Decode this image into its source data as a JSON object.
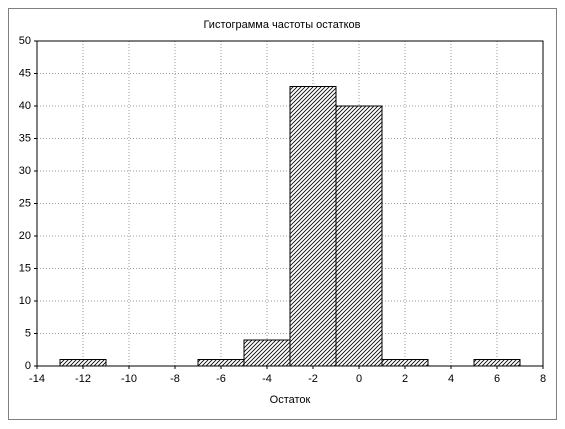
{
  "chart_data": {
    "type": "histogram",
    "title": "Гистограмма частоты остатков",
    "x_label": "Остаток",
    "bins": [
      -13,
      -11,
      -9,
      -7,
      -5,
      -3,
      -1,
      1,
      3,
      5,
      7
    ],
    "values": [
      1,
      0,
      0,
      1,
      4,
      43,
      40,
      1,
      0,
      1
    ],
    "xlim": [
      -14,
      8
    ],
    "xticks": [
      -14,
      -12,
      -10,
      -8,
      -6,
      -4,
      -2,
      0,
      2,
      4,
      6,
      8
    ],
    "ylim": [
      0,
      50
    ],
    "yticks": [
      0,
      5,
      10,
      15,
      20,
      25,
      30,
      35,
      40,
      45,
      50
    ],
    "grid": true,
    "hatch": true,
    "color": "#000000"
  }
}
